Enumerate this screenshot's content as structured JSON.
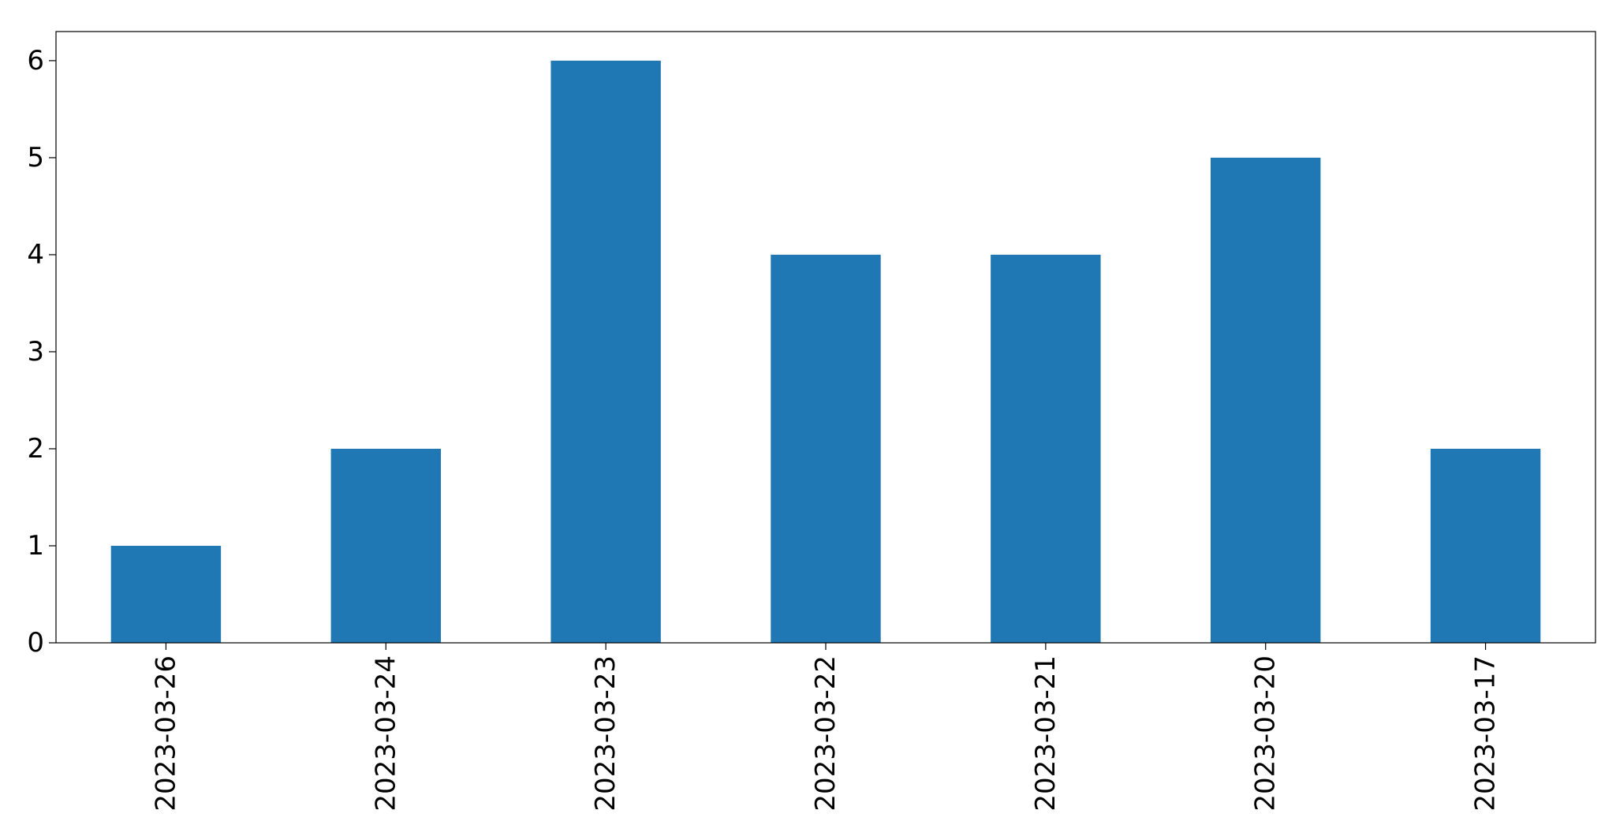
{
  "chart_data": {
    "type": "bar",
    "title": "",
    "xlabel": "",
    "ylabel": "",
    "categories": [
      "2023-03-26",
      "2023-03-24",
      "2023-03-23",
      "2023-03-22",
      "2023-03-21",
      "2023-03-20",
      "2023-03-17"
    ],
    "values": [
      1,
      2,
      6,
      4,
      4,
      5,
      2
    ],
    "ylim": [
      0,
      6.3
    ],
    "yticks": [
      0,
      1,
      2,
      3,
      4,
      5,
      6
    ],
    "grid": false,
    "legend": "none",
    "bar_color": "#1f77b4",
    "x_tick_rotation": "vertical"
  }
}
